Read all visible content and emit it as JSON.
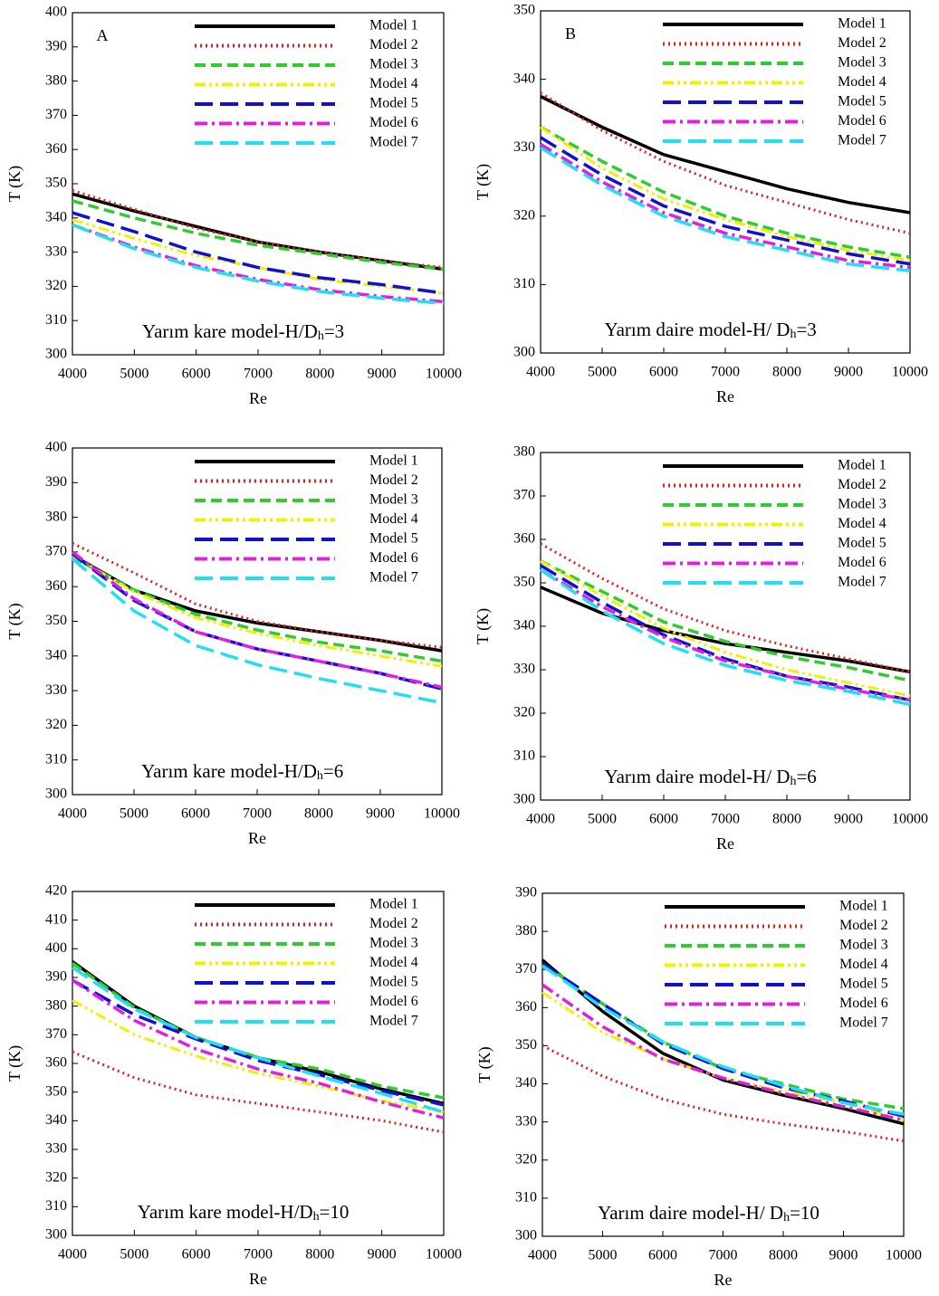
{
  "chart_data": [
    {
      "type": "line",
      "panel_label": "A",
      "annotation": [
        "Yarım kare model-H/D",
        "h",
        "=3"
      ],
      "xlabel": "Re",
      "ylabel": "T (K)",
      "x": [
        4000,
        5000,
        6000,
        7000,
        8000,
        9000,
        10000
      ],
      "xlim": [
        4000,
        10000
      ],
      "xticks": [
        4000,
        5000,
        6000,
        7000,
        8000,
        9000,
        10000
      ],
      "ylim": [
        300,
        400
      ],
      "yticks": [
        300,
        310,
        320,
        330,
        340,
        350,
        360,
        370,
        380,
        390,
        400
      ],
      "series": [
        {
          "name": "Model 1",
          "color": "#000000",
          "style": "solid",
          "values": [
            347,
            342,
            337.5,
            333,
            330,
            327.5,
            325
          ]
        },
        {
          "name": "Model 2",
          "color": "#e0201b",
          "style": "dotted",
          "values": [
            348,
            342.5,
            337,
            333,
            330,
            327.5,
            325.5
          ]
        },
        {
          "name": "Model 3",
          "color": "#2ecc2e",
          "style": "dashed",
          "values": [
            345,
            340,
            335.5,
            332,
            329.5,
            327,
            325
          ]
        },
        {
          "name": "Model 4",
          "color": "#f0f000",
          "style": "dashdotdot",
          "values": [
            339.5,
            334,
            329,
            325.5,
            322,
            320,
            318
          ]
        },
        {
          "name": "Model 5",
          "color": "#1010d0",
          "style": "longdash",
          "values": [
            341.5,
            336,
            330,
            325.5,
            322.5,
            320.5,
            318
          ]
        },
        {
          "name": "Model 6",
          "color": "#e020e0",
          "style": "dashdot",
          "values": [
            338,
            331.5,
            326,
            322,
            319,
            317,
            315.5
          ]
        },
        {
          "name": "Model 7",
          "color": "#20e0f0",
          "style": "longdash",
          "values": [
            338,
            331,
            325.5,
            321.5,
            318.5,
            316.5,
            315
          ]
        }
      ]
    },
    {
      "type": "line",
      "panel_label": "B",
      "annotation": [
        "Yarım daire model-H/ D",
        "h",
        "=3"
      ],
      "xlabel": "Re",
      "ylabel": "T (K)",
      "x": [
        4000,
        5000,
        6000,
        7000,
        8000,
        9000,
        10000
      ],
      "xlim": [
        4000,
        10000
      ],
      "xticks": [
        4000,
        5000,
        6000,
        7000,
        8000,
        9000,
        10000
      ],
      "ylim": [
        300,
        350
      ],
      "yticks": [
        300,
        310,
        320,
        330,
        340,
        350
      ],
      "series": [
        {
          "name": "Model 1",
          "color": "#000000",
          "style": "solid",
          "values": [
            337.5,
            333,
            329,
            326.5,
            324,
            322,
            320.5
          ]
        },
        {
          "name": "Model 2",
          "color": "#e0201b",
          "style": "dotted",
          "values": [
            338,
            332.5,
            328,
            324.5,
            322,
            319.5,
            317.5
          ]
        },
        {
          "name": "Model 3",
          "color": "#2ecc2e",
          "style": "dashed",
          "values": [
            333,
            328,
            323.5,
            320,
            317.5,
            315.5,
            314
          ]
        },
        {
          "name": "Model 4",
          "color": "#f0f000",
          "style": "dashdotdot",
          "values": [
            333,
            327,
            322.5,
            319.5,
            317,
            315,
            313.5
          ]
        },
        {
          "name": "Model 5",
          "color": "#1010d0",
          "style": "longdash",
          "values": [
            331.5,
            326,
            321.5,
            318.5,
            316.5,
            314.5,
            313
          ]
        },
        {
          "name": "Model 6",
          "color": "#e020e0",
          "style": "dashdot",
          "values": [
            330.5,
            325,
            320.5,
            317.5,
            315.5,
            313.5,
            312.5
          ]
        },
        {
          "name": "Model 7",
          "color": "#20e0f0",
          "style": "longdash",
          "values": [
            330,
            324.5,
            320,
            317,
            315,
            313,
            312
          ]
        }
      ]
    },
    {
      "type": "line",
      "annotation": [
        "Yarım kare model-H/D",
        "h",
        "=6"
      ],
      "xlabel": "Re",
      "ylabel": "T (K)",
      "x": [
        4000,
        5000,
        6000,
        7000,
        8000,
        9000,
        10000
      ],
      "xlim": [
        4000,
        10000
      ],
      "xticks": [
        4000,
        5000,
        6000,
        7000,
        8000,
        9000,
        10000
      ],
      "ylim": [
        300,
        400
      ],
      "yticks": [
        300,
        310,
        320,
        330,
        340,
        350,
        360,
        370,
        380,
        390,
        400
      ],
      "series": [
        {
          "name": "Model 1",
          "color": "#000000",
          "style": "solid",
          "values": [
            369,
            359,
            353,
            349.5,
            347,
            344.5,
            341.5
          ]
        },
        {
          "name": "Model 2",
          "color": "#e0201b",
          "style": "dotted",
          "values": [
            372.5,
            364,
            355,
            350,
            347,
            344.5,
            342.5
          ]
        },
        {
          "name": "Model 3",
          "color": "#2ecc2e",
          "style": "dashed",
          "values": [
            368.5,
            359,
            352,
            347.5,
            344,
            341.5,
            338.5
          ]
        },
        {
          "name": "Model 4",
          "color": "#f0f000",
          "style": "dashdotdot",
          "values": [
            369,
            358.5,
            351,
            346.5,
            343,
            340,
            337
          ]
        },
        {
          "name": "Model 5",
          "color": "#1010d0",
          "style": "longdash",
          "values": [
            369.5,
            356,
            347,
            342,
            338.5,
            335,
            330.5
          ]
        },
        {
          "name": "Model 6",
          "color": "#e020e0",
          "style": "dashdot",
          "values": [
            370,
            356.5,
            347,
            342,
            338.5,
            335,
            331
          ]
        },
        {
          "name": "Model 7",
          "color": "#20e0f0",
          "style": "longdash",
          "values": [
            368,
            353,
            343,
            337.5,
            333.5,
            330,
            326.5
          ]
        }
      ]
    },
    {
      "type": "line",
      "annotation": [
        "Yarım daire model-H/ D",
        "h",
        "=6"
      ],
      "xlabel": "Re",
      "ylabel": "T (K)",
      "x": [
        4000,
        5000,
        6000,
        7000,
        8000,
        9000,
        10000
      ],
      "xlim": [
        4000,
        10000
      ],
      "xticks": [
        4000,
        5000,
        6000,
        7000,
        8000,
        9000,
        10000
      ],
      "ylim": [
        300,
        380
      ],
      "yticks": [
        300,
        310,
        320,
        330,
        340,
        350,
        360,
        370,
        380
      ],
      "series": [
        {
          "name": "Model 1",
          "color": "#000000",
          "style": "solid",
          "values": [
            349,
            343,
            339,
            336,
            334,
            332,
            329.5
          ]
        },
        {
          "name": "Model 2",
          "color": "#e0201b",
          "style": "dotted",
          "values": [
            359,
            351,
            344,
            339,
            335.5,
            332.5,
            329.5
          ]
        },
        {
          "name": "Model 3",
          "color": "#2ecc2e",
          "style": "dashed",
          "values": [
            355,
            348,
            341,
            336.5,
            333,
            330.5,
            327.5
          ]
        },
        {
          "name": "Model 4",
          "color": "#f0f000",
          "style": "dashdotdot",
          "values": [
            355,
            347,
            339.5,
            334,
            330,
            327,
            324
          ]
        },
        {
          "name": "Model 5",
          "color": "#1010d0",
          "style": "longdash",
          "values": [
            354,
            345.5,
            338,
            332.5,
            328.5,
            326,
            323
          ]
        },
        {
          "name": "Model 6",
          "color": "#e020e0",
          "style": "dashdot",
          "values": [
            353,
            344.5,
            337.5,
            332,
            328.5,
            325.5,
            323
          ]
        },
        {
          "name": "Model 7",
          "color": "#20e0f0",
          "style": "longdash",
          "values": [
            353,
            343.5,
            336,
            331,
            327.5,
            325,
            322
          ]
        }
      ]
    },
    {
      "type": "line",
      "annotation": [
        "Yarım kare model-H/D",
        "h",
        "=10"
      ],
      "xlabel": "Re",
      "ylabel": "T (K)",
      "x": [
        4000,
        5000,
        6000,
        7000,
        8000,
        9000,
        10000
      ],
      "xlim": [
        4000,
        10000
      ],
      "xticks": [
        4000,
        5000,
        6000,
        7000,
        8000,
        9000,
        10000
      ],
      "ylim": [
        300,
        420
      ],
      "yticks": [
        300,
        310,
        320,
        330,
        340,
        350,
        360,
        370,
        380,
        390,
        400,
        410,
        420
      ],
      "series": [
        {
          "name": "Model 1",
          "color": "#000000",
          "style": "solid",
          "values": [
            395.5,
            380,
            369,
            362,
            357,
            351,
            346
          ]
        },
        {
          "name": "Model 2",
          "color": "#e0201b",
          "style": "dotted",
          "values": [
            364,
            355,
            349,
            346,
            343,
            340,
            336
          ]
        },
        {
          "name": "Model 3",
          "color": "#2ecc2e",
          "style": "dashed",
          "values": [
            395,
            379.5,
            369,
            362,
            358,
            352,
            348
          ]
        },
        {
          "name": "Model 4",
          "color": "#f0f000",
          "style": "dashdotdot",
          "values": [
            382,
            370,
            362.5,
            356.5,
            352,
            347,
            343
          ]
        },
        {
          "name": "Model 5",
          "color": "#1010d0",
          "style": "longdash",
          "values": [
            389,
            377,
            368.5,
            361,
            356,
            350.5,
            345.5
          ]
        },
        {
          "name": "Model 6",
          "color": "#e020e0",
          "style": "dashdot",
          "values": [
            389,
            375,
            365,
            358,
            353,
            346.5,
            341
          ]
        },
        {
          "name": "Model 7",
          "color": "#20e0f0",
          "style": "longdash",
          "values": [
            393.5,
            379,
            369,
            362,
            355.5,
            349.5,
            343
          ]
        }
      ]
    },
    {
      "type": "line",
      "annotation": [
        "Yarım daire model-H/ D",
        "h",
        "=10"
      ],
      "xlabel": "Re",
      "ylabel": "T (K)",
      "x": [
        4000,
        5000,
        6000,
        7000,
        8000,
        9000,
        10000
      ],
      "xlim": [
        4000,
        10000
      ],
      "xticks": [
        4000,
        5000,
        6000,
        7000,
        8000,
        9000,
        10000
      ],
      "ylim": [
        300,
        390
      ],
      "yticks": [
        300,
        310,
        320,
        330,
        340,
        350,
        360,
        370,
        380,
        390
      ],
      "series": [
        {
          "name": "Model 1",
          "color": "#000000",
          "style": "solid",
          "values": [
            372.5,
            359,
            348,
            341,
            337,
            333.5,
            329.5
          ]
        },
        {
          "name": "Model 2",
          "color": "#e0201b",
          "style": "dotted",
          "values": [
            350,
            342,
            336,
            332,
            329.5,
            327.5,
            325
          ]
        },
        {
          "name": "Model 3",
          "color": "#2ecc2e",
          "style": "dashed",
          "values": [
            371.5,
            361,
            351,
            344,
            340,
            336,
            333.5
          ]
        },
        {
          "name": "Model 4",
          "color": "#f0f000",
          "style": "dashdotdot",
          "values": [
            364,
            353.5,
            346.5,
            341.5,
            338,
            335,
            330.5
          ]
        },
        {
          "name": "Model 5",
          "color": "#1010d0",
          "style": "longdash",
          "values": [
            371.5,
            361,
            350.5,
            344,
            339,
            335.5,
            331.5
          ]
        },
        {
          "name": "Model 6",
          "color": "#e020e0",
          "style": "dashdot",
          "values": [
            366,
            355,
            346.5,
            341.5,
            337.5,
            334,
            330.5
          ]
        },
        {
          "name": "Model 7",
          "color": "#20e0f0",
          "style": "longdash",
          "values": [
            371,
            360,
            351,
            344.5,
            339.5,
            335,
            332
          ]
        }
      ]
    }
  ]
}
